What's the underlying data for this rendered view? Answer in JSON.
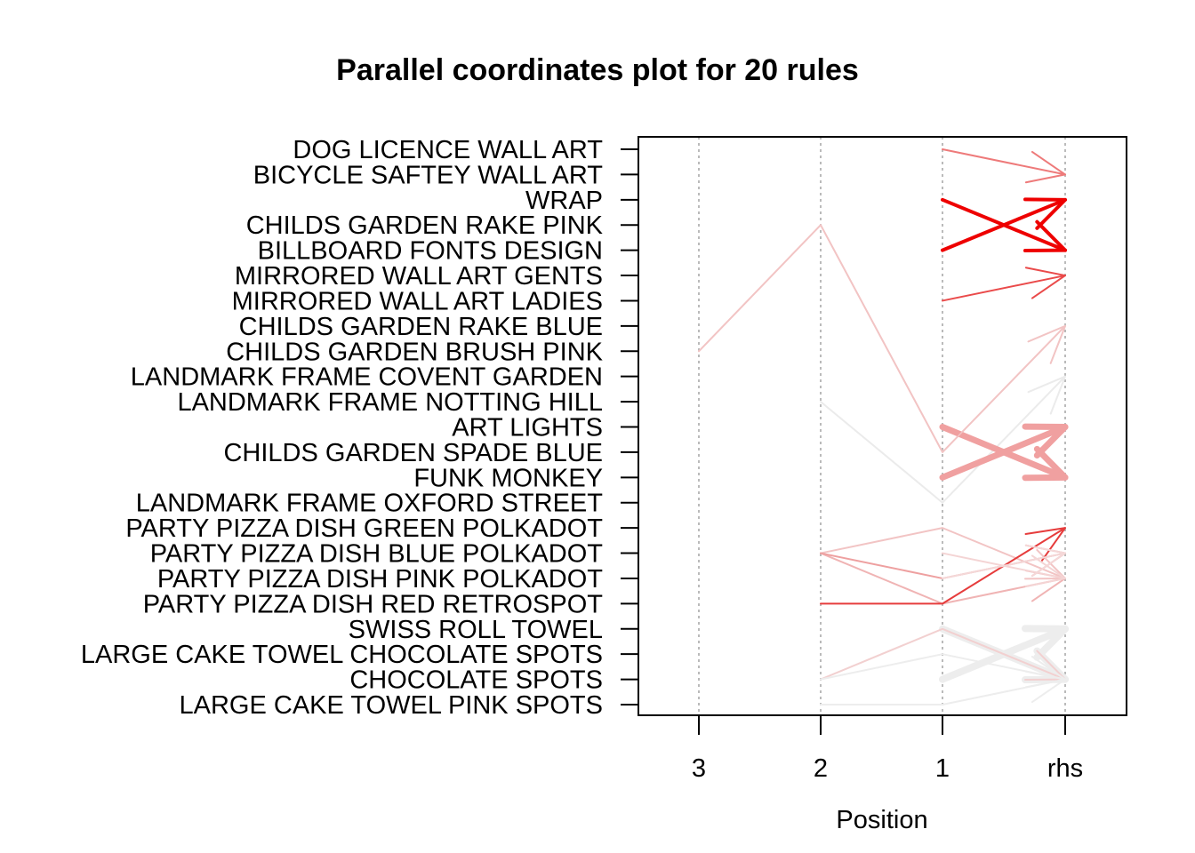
{
  "chart_data": {
    "type": "parallel-coordinates",
    "title": "Parallel coordinates plot for 20 rules",
    "xlabel": "Position",
    "x_ticks": [
      "3",
      "2",
      "1",
      "rhs"
    ],
    "grid": "dotted vertical lines at each position",
    "items": [
      "LARGE CAKE TOWEL PINK SPOTS",
      "CHOCOLATE  SPOTS",
      "LARGE CAKE TOWEL CHOCOLATE SPOTS",
      "SWISS ROLL TOWEL",
      "PARTY PIZZA DISH RED RETROSPOT",
      "PARTY PIZZA DISH PINK POLKADOT",
      "PARTY PIZZA DISH BLUE POLKADOT",
      "PARTY PIZZA DISH GREEN POLKADOT",
      "LANDMARK FRAME OXFORD STREET",
      "FUNK MONKEY",
      "CHILDS GARDEN SPADE BLUE",
      "ART LIGHTS",
      "LANDMARK FRAME NOTTING HILL",
      "LANDMARK FRAME COVENT GARDEN",
      "CHILDS GARDEN BRUSH PINK",
      "CHILDS GARDEN RAKE BLUE",
      "MIRRORED WALL ART LADIES",
      "MIRRORED WALL ART GENTS",
      "BILLBOARD FONTS DESIGN",
      "CHILDS GARDEN RAKE PINK",
      "WRAP",
      "BICYCLE SAFTEY WALL ART",
      "DOG LICENCE WALL ART"
    ],
    "rules": [
      {
        "lhs": [
          "DOG LICENCE WALL ART"
        ],
        "rhs": "BICYCLE SAFTEY WALL ART",
        "color": "#ee7a7a",
        "width": 2
      },
      {
        "lhs": [
          "WRAP"
        ],
        "rhs": "BILLBOARD FONTS DESIGN",
        "color": "#ee0000",
        "width": 4
      },
      {
        "lhs": [
          "BILLBOARD FONTS DESIGN"
        ],
        "rhs": "WRAP",
        "color": "#ee0000",
        "width": 4
      },
      {
        "lhs": [
          "MIRRORED WALL ART LADIES"
        ],
        "rhs": "MIRRORED WALL ART GENTS",
        "color": "#ea4a4a",
        "width": 2
      },
      {
        "lhs": [
          "CHILDS GARDEN SPADE BLUE",
          "CHILDS GARDEN RAKE PINK",
          "CHILDS GARDEN BRUSH PINK"
        ],
        "rhs": "CHILDS GARDEN RAKE BLUE",
        "color": "#f2c4c4",
        "width": 2
      },
      {
        "lhs": [
          "LANDMARK FRAME OXFORD STREET",
          "LANDMARK FRAME NOTTING HILL"
        ],
        "rhs": "LANDMARK FRAME COVENT GARDEN",
        "color": "#ebebeb",
        "width": 2
      },
      {
        "lhs": [
          "FUNK MONKEY"
        ],
        "rhs": "ART LIGHTS",
        "color": "#f0a0a0",
        "width": 7
      },
      {
        "lhs": [
          "ART LIGHTS"
        ],
        "rhs": "FUNK MONKEY",
        "color": "#f0a0a0",
        "width": 7
      },
      {
        "lhs": [
          "PARTY PIZZA DISH GREEN POLKADOT",
          "PARTY PIZZA DISH BLUE POLKADOT"
        ],
        "rhs": "PARTY PIZZA DISH PINK POLKADOT",
        "color": "#f2c4c4",
        "width": 2
      },
      {
        "lhs": [
          "PARTY PIZZA DISH RED RETROSPOT",
          "PARTY PIZZA DISH BLUE POLKADOT"
        ],
        "rhs": "PARTY PIZZA DISH PINK POLKADOT",
        "color": "#f0b4b4",
        "width": 2
      },
      {
        "lhs": [
          "PARTY PIZZA DISH PINK POLKADOT",
          "PARTY PIZZA DISH BLUE POLKADOT"
        ],
        "rhs": "PARTY PIZZA DISH BLUE POLKADOT",
        "color": "#eea0a0",
        "width": 2
      },
      {
        "lhs": [
          "PARTY PIZZA DISH RED RETROSPOT",
          "PARTY PIZZA DISH RED RETROSPOT"
        ],
        "rhs": "PARTY PIZZA DISH GREEN POLKADOT",
        "color": "#e63c3c",
        "width": 2
      },
      {
        "lhs": [
          "PARTY PIZZA DISH BLUE POLKADOT"
        ],
        "rhs": "PARTY PIZZA DISH PINK POLKADOT",
        "color": "#f4d4d4",
        "width": 2
      },
      {
        "lhs": [
          "PARTY PIZZA DISH PINK POLKADOT"
        ],
        "rhs": "PARTY PIZZA DISH BLUE POLKADOT",
        "color": "#f4d8d8",
        "width": 2
      },
      {
        "lhs": [
          "CHOCOLATE  SPOTS"
        ],
        "rhs": "SWISS ROLL TOWEL",
        "color": "#ededed",
        "width": 8
      },
      {
        "lhs": [
          "SWISS ROLL TOWEL"
        ],
        "rhs": "CHOCOLATE  SPOTS",
        "color": "#ededed",
        "width": 8
      },
      {
        "lhs": [
          "SWISS ROLL TOWEL",
          "CHOCOLATE  SPOTS"
        ],
        "rhs": "CHOCOLATE  SPOTS",
        "color": "#f2d0d0",
        "width": 2
      },
      {
        "lhs": [
          "LARGE CAKE TOWEL CHOCOLATE SPOTS",
          "CHOCOLATE  SPOTS"
        ],
        "rhs": "CHOCOLATE  SPOTS",
        "color": "#ededed",
        "width": 2
      },
      {
        "lhs": [
          "LARGE CAKE TOWEL PINK SPOTS",
          "LARGE CAKE TOWEL PINK SPOTS"
        ],
        "rhs": "CHOCOLATE  SPOTS",
        "color": "#ededed",
        "width": 2
      },
      {
        "lhs": [
          "CHILDS GARDEN SPADE BLUE",
          "CHILDS GARDEN RAKE PINK",
          "CHILDS GARDEN BRUSH PINK"
        ],
        "rhs": "CHILDS GARDEN RAKE BLUE",
        "color": "#f2c4c4",
        "width": 1.5
      }
    ]
  }
}
